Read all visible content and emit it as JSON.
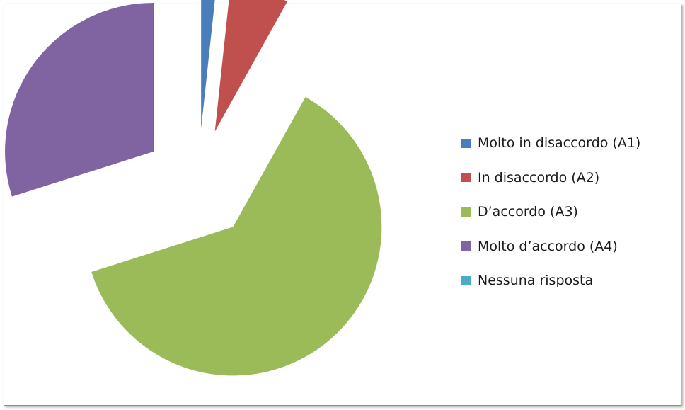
{
  "chart_data": {
    "type": "pie",
    "categories": [
      "Molto in disaccordo (A1)",
      "In disaccordo (A2)",
      "D’accordo (A3)",
      "Molto d’accordo (A4)",
      "Nessuna risposta"
    ],
    "values": [
      1.7,
      6.4,
      62.0,
      29.9,
      0.0
    ],
    "colors": [
      "#4a7ebb",
      "#c0504d",
      "#9bbb59",
      "#8064a2",
      "#4bacc6"
    ],
    "exploded": true,
    "legend_position": "right",
    "title": ""
  }
}
